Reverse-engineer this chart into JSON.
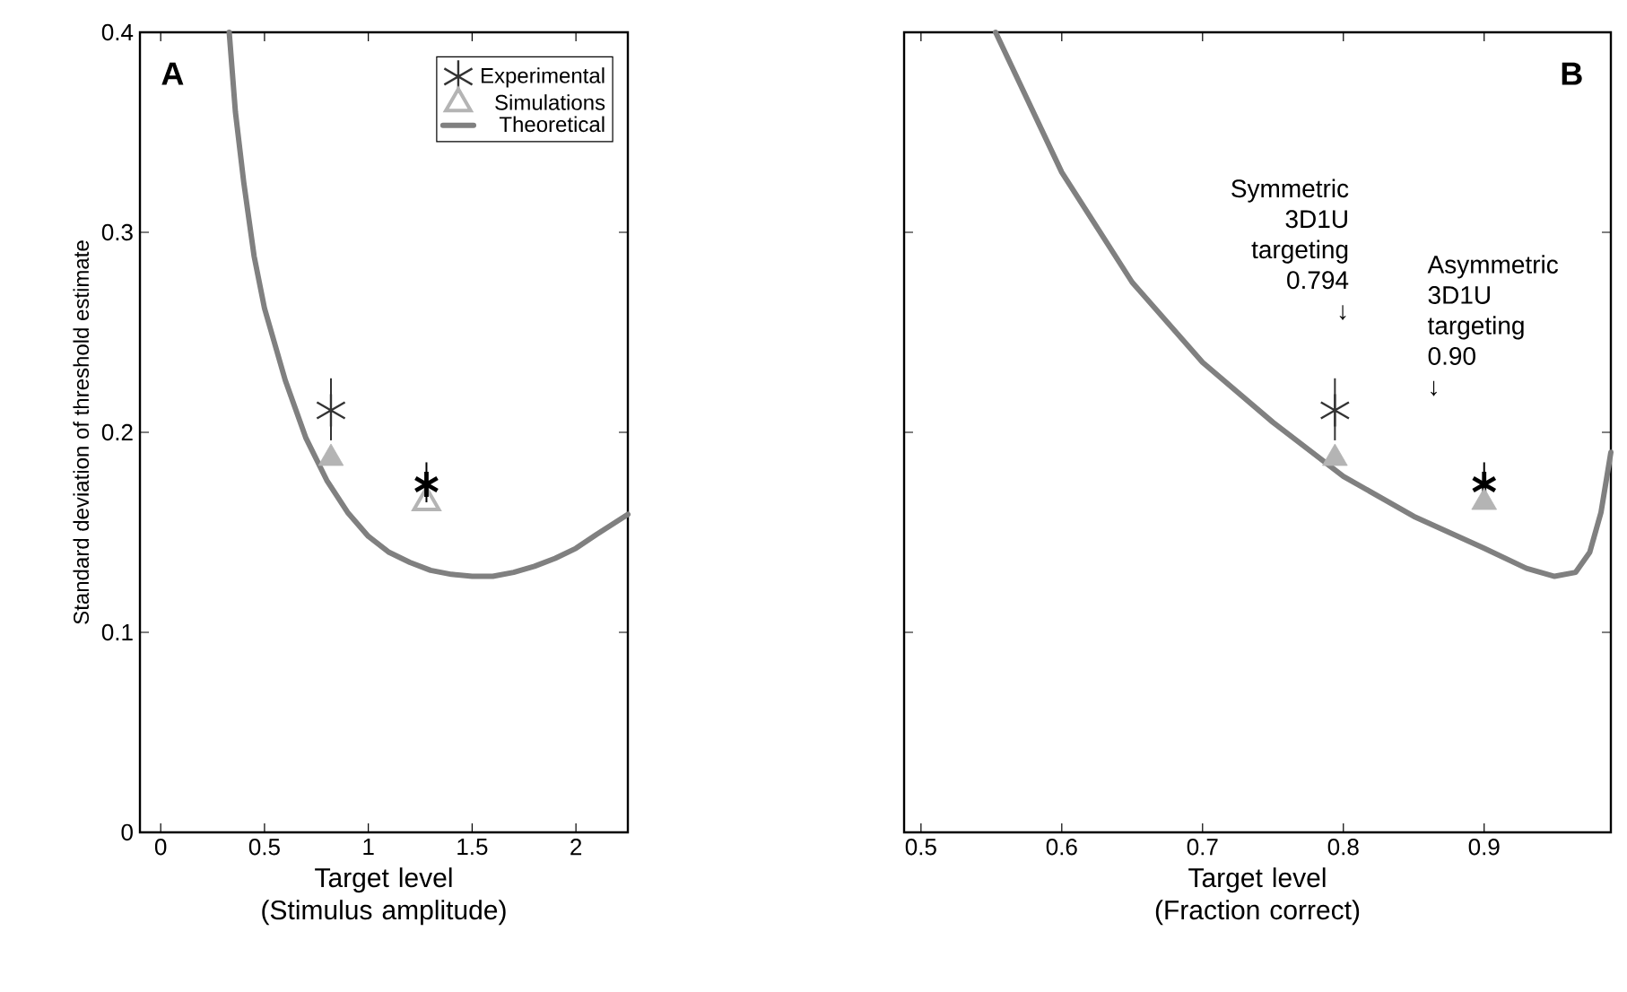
{
  "chart_data": [
    {
      "type": "scatter",
      "title": "A",
      "xlabel": "Target level (Stimulus amplitude)",
      "ylabel": "Standard deviation of threshold estimate",
      "xlim": [
        -0.1,
        2.25
      ],
      "ylim": [
        0,
        0.4
      ],
      "xticks": [
        0,
        0.5,
        1,
        1.5,
        2
      ],
      "yticks": [
        0,
        0.1,
        0.2,
        0.3,
        0.4
      ],
      "legend": "top right",
      "series": [
        {
          "name": "Experimental",
          "marker": "cross",
          "color": "#333333",
          "x": [
            0.82
          ],
          "values": [
            0.211
          ],
          "errors": [
            [
              0.196,
              0.227
            ]
          ]
        },
        {
          "name": "Simulations",
          "marker": "triangle",
          "color": "#b4b4b4",
          "x": [
            1.28
          ],
          "values": [
            0.165
          ]
        },
        {
          "name": "Theoretical",
          "type": "line",
          "marker": "none",
          "color": "#808080",
          "x": [
            0.33,
            0.36,
            0.4,
            0.45,
            0.5,
            0.6,
            0.7,
            0.8,
            0.9,
            1.0,
            1.1,
            1.2,
            1.3,
            1.4,
            1.5,
            1.6,
            1.7,
            1.8,
            1.9,
            2.0,
            2.1,
            2.25
          ],
          "values": [
            0.4,
            0.36,
            0.325,
            0.288,
            0.262,
            0.226,
            0.197,
            0.176,
            0.16,
            0.148,
            0.14,
            0.135,
            0.131,
            0.129,
            0.128,
            0.128,
            0.13,
            0.133,
            0.137,
            0.142,
            0.149,
            0.159
          ]
        },
        {
          "marker": "cross",
          "color": "#000000",
          "x": [
            1.28
          ],
          "values": [
            0.174
          ],
          "errors": [
            [
              0.165,
              0.185
            ]
          ]
        },
        {
          "marker": "triangle",
          "color": "#b4b4b4",
          "x": [
            0.82
          ],
          "values": [
            0.187
          ]
        }
      ]
    },
    {
      "type": "scatter",
      "title": "B",
      "xlabel": "Target level (Fraction correct)",
      "xlim": [
        0.488,
        0.99
      ],
      "ylim": [
        0,
        0.4
      ],
      "xticks": [
        0.5,
        0.6,
        0.7,
        0.8,
        0.9
      ],
      "yticks": [
        0,
        0.1,
        0.2,
        0.3,
        0.4
      ],
      "tick_labels": "x",
      "annotations": [
        "Symmetric 3D1U targeting 0.794 ↓",
        "Asymmetric 3D1U targeting 0.90 ↓"
      ],
      "series": [
        {
          "type": "line",
          "marker": "none",
          "color": "#808080",
          "x": [
            0.553,
            0.6,
            0.65,
            0.7,
            0.75,
            0.8,
            0.85,
            0.9,
            0.93,
            0.95,
            0.965,
            0.975,
            0.983,
            0.99
          ],
          "values": [
            0.4,
            0.33,
            0.275,
            0.235,
            0.205,
            0.178,
            0.158,
            0.142,
            0.132,
            0.128,
            0.13,
            0.14,
            0.16,
            0.19
          ]
        },
        {
          "marker": "cross",
          "color": "#333333",
          "x": [
            0.794
          ],
          "values": [
            0.211
          ],
          "errors": [
            [
              0.196,
              0.227
            ]
          ]
        },
        {
          "marker": "triangle",
          "color": "#b4b4b4",
          "x": [
            0.794
          ],
          "values": [
            0.187
          ]
        },
        {
          "marker": "cross",
          "color": "#000000",
          "x": [
            0.9
          ],
          "values": [
            0.174
          ],
          "errors": [
            [
              0.165,
              0.185
            ]
          ]
        },
        {
          "marker": "triangle",
          "color": "#b4b4b4",
          "x": [
            0.9
          ],
          "values": [
            0.165
          ]
        }
      ]
    }
  ]
}
